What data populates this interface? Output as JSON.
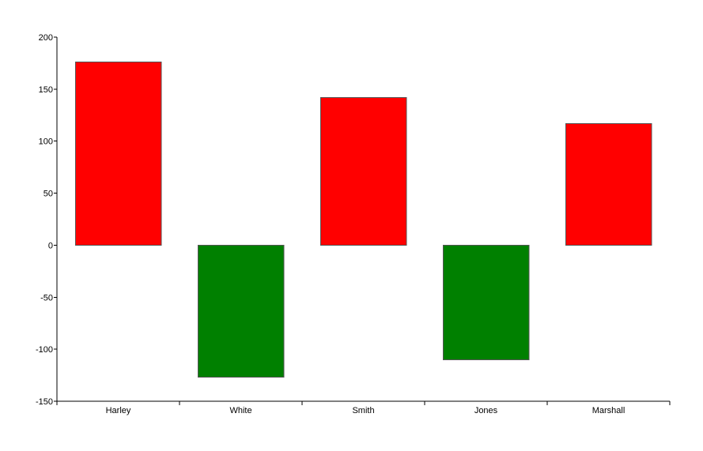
{
  "chart_data": {
    "type": "bar",
    "title": "",
    "xlabel": "",
    "ylabel": "",
    "categories": [
      "Harley",
      "White",
      "Smith",
      "Jones",
      "Marshall"
    ],
    "values": [
      176,
      -127,
      142,
      -110,
      117
    ],
    "ylim": [
      -150,
      200
    ],
    "yticks": [
      200,
      150,
      100,
      50,
      0,
      -50,
      -100,
      -150
    ],
    "ytick_labels": [
      "200",
      "150",
      "100",
      "50",
      "0",
      "-50",
      "-100",
      "-150"
    ],
    "grid": false,
    "legend": "none",
    "colors": {
      "positive": "#ff0000",
      "negative": "#008000",
      "bar_border": "#555555",
      "axis": "#000000"
    }
  }
}
